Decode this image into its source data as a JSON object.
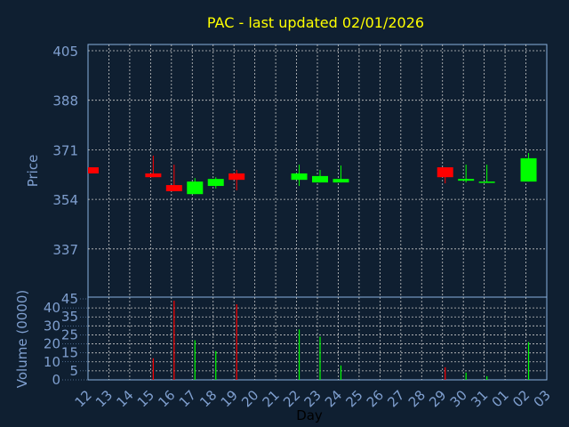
{
  "colors": {
    "background": "#0f1f31",
    "axis": "#8ab0e0",
    "up": "#00ff00",
    "down": "#ff0000",
    "title": "#ffff00",
    "grid": "#c8c8c8"
  },
  "chart_data": [
    {
      "type": "candlestick",
      "title": "PAC - last updated 02/01/2026",
      "ylabel": "Price",
      "ylim": [
        325,
        407
      ],
      "yticks": [
        "405",
        "388",
        "371",
        "354",
        "337"
      ],
      "grid": true,
      "candles": [
        {
          "day": "12",
          "open": 365.0,
          "high": 365.0,
          "low": 362.9,
          "close": 362.9
        },
        {
          "day": "15",
          "open": 362.9,
          "high": 369.0,
          "low": 361.6,
          "close": 361.6
        },
        {
          "day": "16",
          "open": 358.9,
          "high": 365.9,
          "low": 356.8,
          "close": 356.8
        },
        {
          "day": "17",
          "open": 355.8,
          "high": 361.3,
          "low": 355.8,
          "close": 360.1
        },
        {
          "day": "18",
          "open": 358.6,
          "high": 361.6,
          "low": 357.7,
          "close": 361.0
        },
        {
          "day": "19",
          "open": 362.9,
          "high": 364.1,
          "low": 357.1,
          "close": 360.7
        },
        {
          "day": "22",
          "open": 360.7,
          "high": 365.9,
          "low": 358.6,
          "close": 362.9
        },
        {
          "day": "23",
          "open": 359.8,
          "high": 364.1,
          "low": 359.8,
          "close": 362.0
        },
        {
          "day": "24",
          "open": 359.8,
          "high": 365.6,
          "low": 359.8,
          "close": 361.0
        },
        {
          "day": "29",
          "open": 365.0,
          "high": 365.0,
          "low": 359.5,
          "close": 361.6
        },
        {
          "day": "30",
          "open": 360.4,
          "high": 365.9,
          "low": 359.8,
          "close": 361.0
        },
        {
          "day": "31",
          "open": 359.8,
          "high": 365.9,
          "low": 359.8,
          "close": 360.1
        },
        {
          "day": "02",
          "open": 360.1,
          "high": 369.9,
          "low": 360.1,
          "close": 368.1
        }
      ]
    },
    {
      "type": "bar",
      "ylabel": "Volume (0000)",
      "xlabel": "Day",
      "ylim": [
        0,
        45
      ],
      "yticks": [
        "45",
        "40",
        "35",
        "30",
        "25",
        "20",
        "15",
        "10",
        "5",
        "0"
      ],
      "categories": [
        "12",
        "13",
        "14",
        "15",
        "16",
        "17",
        "18",
        "19",
        "20",
        "21",
        "22",
        "23",
        "24",
        "25",
        "26",
        "27",
        "28",
        "29",
        "30",
        "31",
        "01",
        "02",
        "03"
      ],
      "bars": [
        {
          "day": "15",
          "value": 12,
          "dir": "down"
        },
        {
          "day": "16",
          "value": 44,
          "dir": "down"
        },
        {
          "day": "17",
          "value": 22,
          "dir": "up"
        },
        {
          "day": "18",
          "value": 16,
          "dir": "up"
        },
        {
          "day": "19",
          "value": 42,
          "dir": "down"
        },
        {
          "day": "22",
          "value": 28,
          "dir": "up"
        },
        {
          "day": "23",
          "value": 24,
          "dir": "up"
        },
        {
          "day": "24",
          "value": 8,
          "dir": "up"
        },
        {
          "day": "29",
          "value": 7,
          "dir": "down"
        },
        {
          "day": "30",
          "value": 4,
          "dir": "up"
        },
        {
          "day": "31",
          "value": 2,
          "dir": "up"
        },
        {
          "day": "02",
          "value": 21,
          "dir": "up"
        }
      ]
    }
  ]
}
